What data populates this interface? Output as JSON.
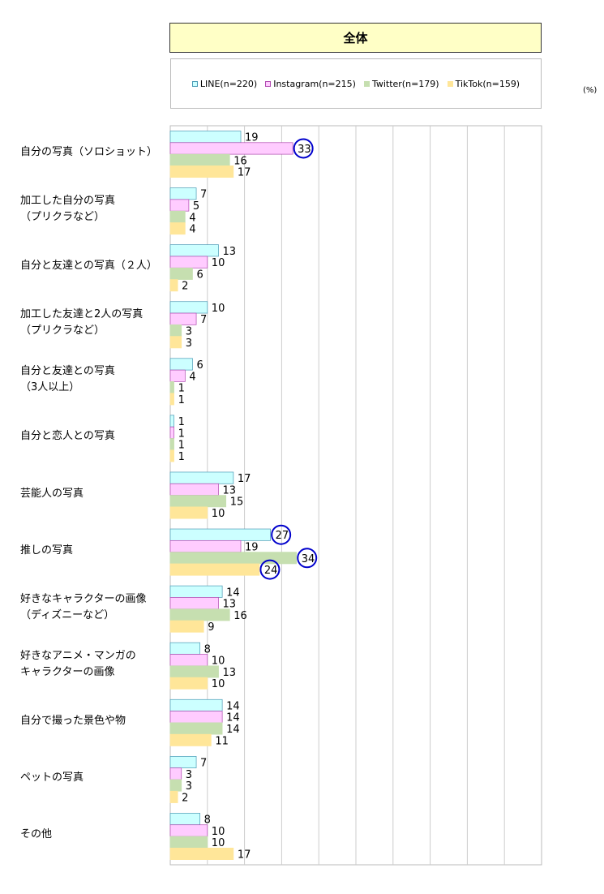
{
  "header": {
    "title": "全体",
    "unit": "(%)"
  },
  "chart_data": {
    "type": "bar",
    "orientation": "horizontal",
    "title": "全体",
    "xlim": [
      0,
      100
    ],
    "grid": true,
    "legend_position": "top",
    "series": [
      {
        "name": "LINE(n=220)",
        "color": "#ccffff",
        "stroke": "#4a9ab5",
        "values": [
          19,
          7,
          13,
          10,
          6,
          1,
          17,
          27,
          14,
          8,
          14,
          7,
          8
        ]
      },
      {
        "name": "Instagram(n=215)",
        "color": "#ffccff",
        "stroke": "#b04ab0",
        "values": [
          33,
          5,
          10,
          7,
          4,
          1,
          13,
          19,
          13,
          10,
          14,
          3,
          10
        ]
      },
      {
        "name": "Twitter(n=179)",
        "color": "#c6dfb0",
        "stroke": "#c6dfb0",
        "values": [
          16,
          4,
          6,
          3,
          1,
          1,
          15,
          34,
          16,
          13,
          14,
          3,
          10
        ]
      },
      {
        "name": "TikTok(n=159)",
        "color": "#ffe699",
        "stroke": "#ffe699",
        "values": [
          17,
          4,
          2,
          3,
          1,
          1,
          10,
          24,
          9,
          10,
          11,
          2,
          17
        ]
      }
    ],
    "categories": [
      [
        "自分の写真（ソロショット）"
      ],
      [
        "加工した自分の写真",
        "（プリクラなど）"
      ],
      [
        "自分と友達との写真（２人）"
      ],
      [
        "加工した友達と2人の写真",
        "（プリクラなど）"
      ],
      [
        "自分と友達との写真",
        "（3人以上）"
      ],
      [
        "自分と恋人との写真"
      ],
      [
        "芸能人の写真"
      ],
      [
        "推しの写真"
      ],
      [
        "好きなキャラクターの画像",
        "（ディズニーなど）"
      ],
      [
        "好きなアニメ・マンガの",
        "キャラクターの画像"
      ],
      [
        "自分で撮った景色や物"
      ],
      [
        "ペットの写真"
      ],
      [
        "その他"
      ]
    ],
    "highlights": [
      {
        "category": 0,
        "series": 1
      },
      {
        "category": 7,
        "series": 0
      },
      {
        "category": 7,
        "series": 2
      },
      {
        "category": 7,
        "series": 3
      }
    ],
    "highlight_color": "#0000cc"
  }
}
